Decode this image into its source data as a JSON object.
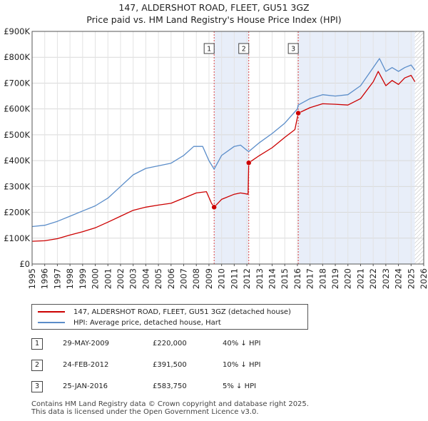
{
  "title_line1": "147, ALDERSHOT ROAD, FLEET, GU51 3GZ",
  "title_line2": "Price paid vs. HM Land Registry's House Price Index (HPI)",
  "legend": {
    "property": "147, ALDERSHOT ROAD, FLEET, GU51 3GZ (detached house)",
    "hpi": "HPI: Average price, detached house, Hart"
  },
  "colors": {
    "property": "#cc0000",
    "hpi": "#5b8dc9",
    "shade": "#e8eef9"
  },
  "sales": [
    {
      "num": "1",
      "date": "29-MAY-2009",
      "price": "£220,000",
      "hpi_diff": "40% ↓ HPI"
    },
    {
      "num": "2",
      "date": "24-FEB-2012",
      "price": "£391,500",
      "hpi_diff": "10% ↓ HPI"
    },
    {
      "num": "3",
      "date": "25-JAN-2016",
      "price": "£583,750",
      "hpi_diff": "5% ↓ HPI"
    }
  ],
  "footer": {
    "line1": "Contains HM Land Registry data © Crown copyright and database right 2025.",
    "line2": "This data is licensed under the Open Government Licence v3.0."
  },
  "chart_data": {
    "type": "line",
    "title": "Price paid vs. HM Land Registry's House Price Index (HPI)",
    "xlim": [
      1995,
      2026
    ],
    "ylim": [
      0,
      900000
    ],
    "x_ticks": [
      "1995",
      "1996",
      "1997",
      "1998",
      "1999",
      "2000",
      "2001",
      "2002",
      "2003",
      "2004",
      "2005",
      "2006",
      "2007",
      "2008",
      "2009",
      "2010",
      "2011",
      "2012",
      "2013",
      "2014",
      "2015",
      "2016",
      "2017",
      "2018",
      "2019",
      "2020",
      "2021",
      "2022",
      "2023",
      "2024",
      "2025",
      "2026"
    ],
    "y_ticks": [
      {
        "value": 0,
        "label": "£0"
      },
      {
        "value": 100000,
        "label": "£100K"
      },
      {
        "value": 200000,
        "label": "£200K"
      },
      {
        "value": 300000,
        "label": "£300K"
      },
      {
        "value": 400000,
        "label": "£400K"
      },
      {
        "value": 500000,
        "label": "£500K"
      },
      {
        "value": 600000,
        "label": "£600K"
      },
      {
        "value": 700000,
        "label": "£700K"
      },
      {
        "value": 800000,
        "label": "£800K"
      },
      {
        "value": 900000,
        "label": "£900K"
      }
    ],
    "shaded_ranges": [
      [
        2009.41,
        2012.15
      ],
      [
        2016.07,
        2025.3
      ]
    ],
    "hatched_range": [
      2025.3,
      2026
    ],
    "markers": [
      {
        "label": "1",
        "x": 2009.41,
        "y": 220000
      },
      {
        "label": "2",
        "x": 2012.15,
        "y": 391500
      },
      {
        "label": "3",
        "x": 2016.07,
        "y": 583750
      }
    ],
    "series": [
      {
        "name": "147, ALDERSHOT ROAD, FLEET, GU51 3GZ (detached house)",
        "x": [
          1995,
          1996,
          1997,
          1998,
          1999,
          2000,
          2001,
          2002,
          2003,
          2004,
          2005,
          2006,
          2007,
          2008,
          2008.8,
          2009.2,
          2009.41,
          2010,
          2011,
          2011.5,
          2012.1,
          2012.15,
          2013,
          2014,
          2015,
          2015.8,
          2016.07,
          2017,
          2018,
          2019,
          2020,
          2021,
          2022,
          2022.4,
          2023,
          2023.5,
          2024,
          2024.5,
          2025,
          2025.3
        ],
        "values": [
          88000,
          90000,
          98000,
          112000,
          125000,
          140000,
          162000,
          185000,
          208000,
          220000,
          228000,
          235000,
          255000,
          275000,
          280000,
          235000,
          220000,
          250000,
          270000,
          275000,
          270000,
          391500,
          420000,
          450000,
          490000,
          520000,
          583750,
          605000,
          620000,
          618000,
          615000,
          640000,
          705000,
          745000,
          690000,
          710000,
          695000,
          720000,
          730000,
          705000
        ]
      },
      {
        "name": "HPI: Average price, detached house, Hart",
        "x": [
          1995,
          1996,
          1997,
          1998,
          1999,
          2000,
          2001,
          2002,
          2003,
          2004,
          2005,
          2006,
          2007,
          2007.8,
          2008.5,
          2009,
          2009.41,
          2010,
          2011,
          2011.5,
          2012,
          2012.15,
          2013,
          2014,
          2015,
          2016,
          2016.07,
          2017,
          2018,
          2019,
          2020,
          2021,
          2022,
          2022.5,
          2023,
          2023.5,
          2024,
          2024.5,
          2025,
          2025.3
        ],
        "values": [
          145000,
          150000,
          165000,
          185000,
          205000,
          225000,
          255000,
          300000,
          345000,
          370000,
          380000,
          390000,
          420000,
          455000,
          455000,
          400000,
          367000,
          420000,
          455000,
          460000,
          440000,
          435000,
          470000,
          505000,
          545000,
          600000,
          615000,
          640000,
          655000,
          650000,
          655000,
          690000,
          760000,
          795000,
          745000,
          760000,
          745000,
          760000,
          770000,
          750000
        ]
      }
    ]
  }
}
